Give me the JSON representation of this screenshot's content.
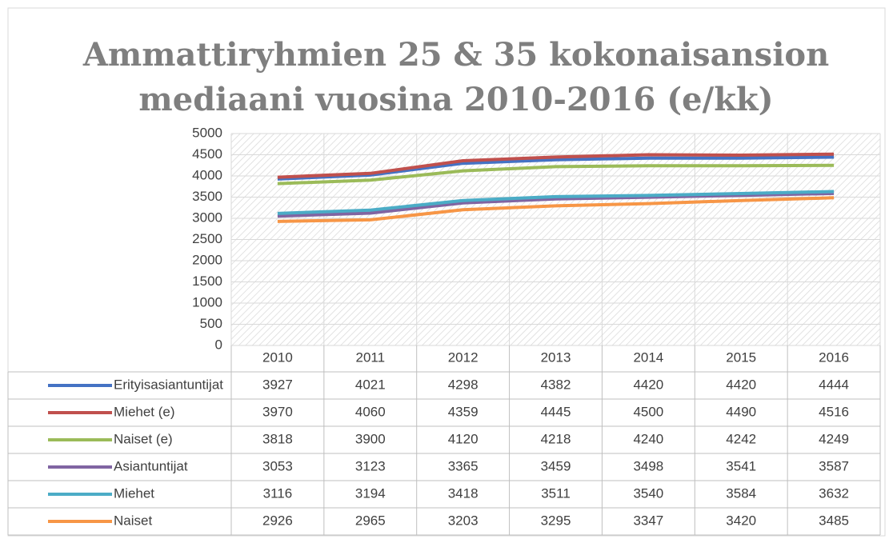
{
  "chart_data": {
    "type": "line",
    "title": [
      "Ammattiryhmien 25 & 35 kokonaisansion",
      "mediaani vuosina 2010-2016 (e/kk)"
    ],
    "categories": [
      "2010",
      "2011",
      "2012",
      "2013",
      "2014",
      "2015",
      "2016"
    ],
    "series": [
      {
        "name": "Erityisasiantuntijat",
        "color": "#4472c4",
        "values": [
          3927,
          4021,
          4298,
          4382,
          4420,
          4420,
          4444
        ]
      },
      {
        "name": "Miehet (e)",
        "color": "#c0504d",
        "values": [
          3970,
          4060,
          4359,
          4445,
          4500,
          4490,
          4516
        ]
      },
      {
        "name": "Naiset (e)",
        "color": "#9bbb59",
        "values": [
          3818,
          3900,
          4120,
          4218,
          4240,
          4242,
          4249
        ]
      },
      {
        "name": "Asiantuntijat",
        "color": "#8064a2",
        "values": [
          3053,
          3123,
          3365,
          3459,
          3498,
          3541,
          3587
        ]
      },
      {
        "name": "Miehet",
        "color": "#4bacc6",
        "values": [
          3116,
          3194,
          3418,
          3511,
          3540,
          3584,
          3632
        ]
      },
      {
        "name": "Naiset",
        "color": "#f79646",
        "values": [
          2926,
          2965,
          3203,
          3295,
          3347,
          3420,
          3485
        ]
      }
    ],
    "ylim": [
      0,
      5000
    ],
    "yticks": [
      0,
      500,
      1000,
      1500,
      2000,
      2500,
      3000,
      3500,
      4000,
      4500,
      5000
    ],
    "grid": true,
    "data_table": true
  }
}
